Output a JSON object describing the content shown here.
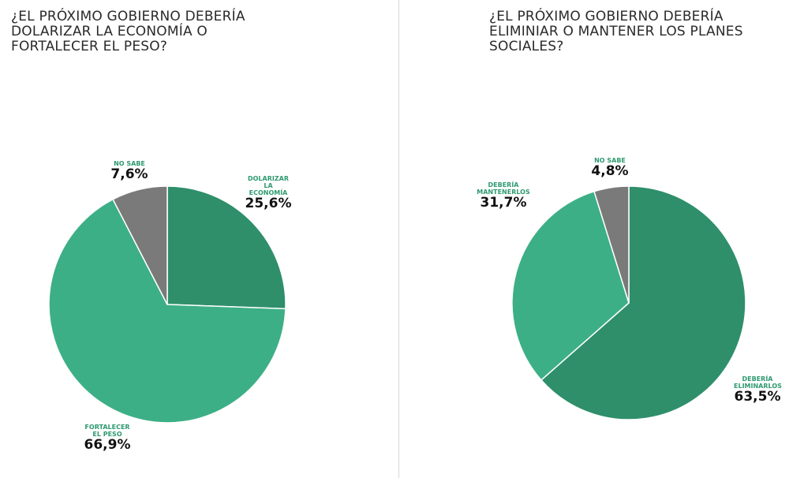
{
  "colors": {
    "dark_green": "#2f8f6b",
    "light_green": "#3daf87",
    "gray": "#7a7a7a"
  },
  "chart_data": [
    {
      "type": "pie",
      "title": "¿EL PRÓXIMO GOBIERNO DEBERÍA DOLARIZAR LA ECONOMÍA O FORTALECER EL PESO?",
      "slices": [
        {
          "name": "DOLARIZAR LA ECONOMÍA",
          "value": 25.6,
          "label": "25,6%",
          "color": "#2f8f6b"
        },
        {
          "name": "FORTALECER EL PESO",
          "value": 66.9,
          "label": "66,9%",
          "color": "#3daf87"
        },
        {
          "name": "NO SABE",
          "value": 7.6,
          "label": "7,6%",
          "color": "#7a7a7a"
        }
      ]
    },
    {
      "type": "pie",
      "title": "¿EL PRÓXIMO GOBIERNO DEBERÍA ELIMINIAR O MANTENER LOS PLANES SOCIALES?",
      "slices": [
        {
          "name": "DEBERÍA ELIMINARLOS",
          "value": 63.5,
          "label": "63,5%",
          "color": "#2f8f6b"
        },
        {
          "name": "DEBERÍA MANTENERLOS",
          "value": 31.7,
          "label": "31,7%",
          "color": "#3daf87"
        },
        {
          "name": "NO SABE",
          "value": 4.8,
          "label": "4,8%",
          "color": "#7a7a7a"
        }
      ]
    }
  ]
}
